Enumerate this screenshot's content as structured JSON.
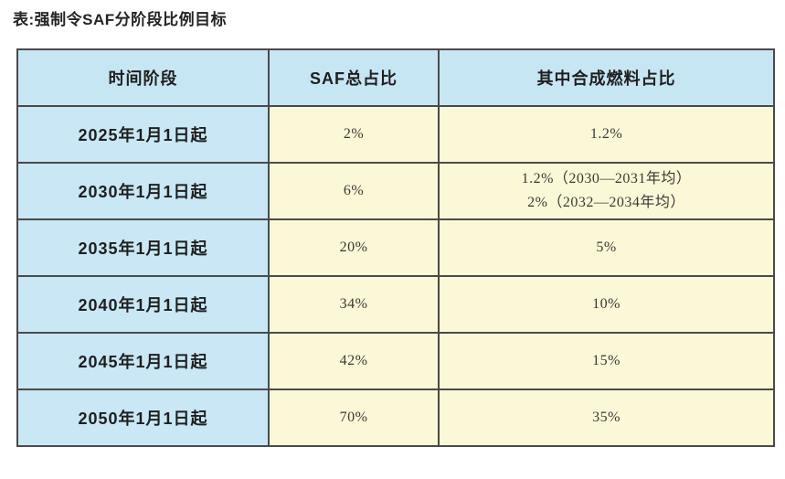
{
  "title": "表:强制令SAF分阶段比例目标",
  "table": {
    "headers": [
      "时间阶段",
      "SAF总占比",
      "其中合成燃料占比"
    ],
    "rows": [
      {
        "period": "2025年1月1日起",
        "saf_total": "2%",
        "synthetic": [
          "1.2%"
        ]
      },
      {
        "period": "2030年1月1日起",
        "saf_total": "6%",
        "synthetic": [
          "1.2%（2030—2031年均）",
          "2%（2032—2034年均）"
        ]
      },
      {
        "period": "2035年1月1日起",
        "saf_total": "20%",
        "synthetic": [
          "5%"
        ]
      },
      {
        "period": "2040年1月1日起",
        "saf_total": "34%",
        "synthetic": [
          "10%"
        ]
      },
      {
        "period": "2045年1月1日起",
        "saf_total": "42%",
        "synthetic": [
          "15%"
        ]
      },
      {
        "period": "2050年1月1日起",
        "saf_total": "70%",
        "synthetic": [
          "35%"
        ]
      }
    ]
  },
  "chart_data": {
    "type": "table",
    "title": "表:强制令SAF分阶段比例目标",
    "columns": [
      "时间阶段",
      "SAF总占比",
      "其中合成燃料占比"
    ],
    "rows": [
      [
        "2025年1月1日起",
        "2%",
        "1.2%"
      ],
      [
        "2030年1月1日起",
        "6%",
        "1.2%（2030—2031年均）2%（2032—2034年均）"
      ],
      [
        "2035年1月1日起",
        "20%",
        "5%"
      ],
      [
        "2040年1月1日起",
        "34%",
        "10%"
      ],
      [
        "2045年1月1日起",
        "42%",
        "15%"
      ],
      [
        "2050年1月1日起",
        "70%",
        "35%"
      ]
    ]
  },
  "colors": {
    "header_bg": "#c7e6f3",
    "period_bg": "#c9e7f4",
    "value_bg": "#fbf8d8",
    "border": "#4a4a4a",
    "title_text": "#242424",
    "value_text": "#3d3733"
  }
}
